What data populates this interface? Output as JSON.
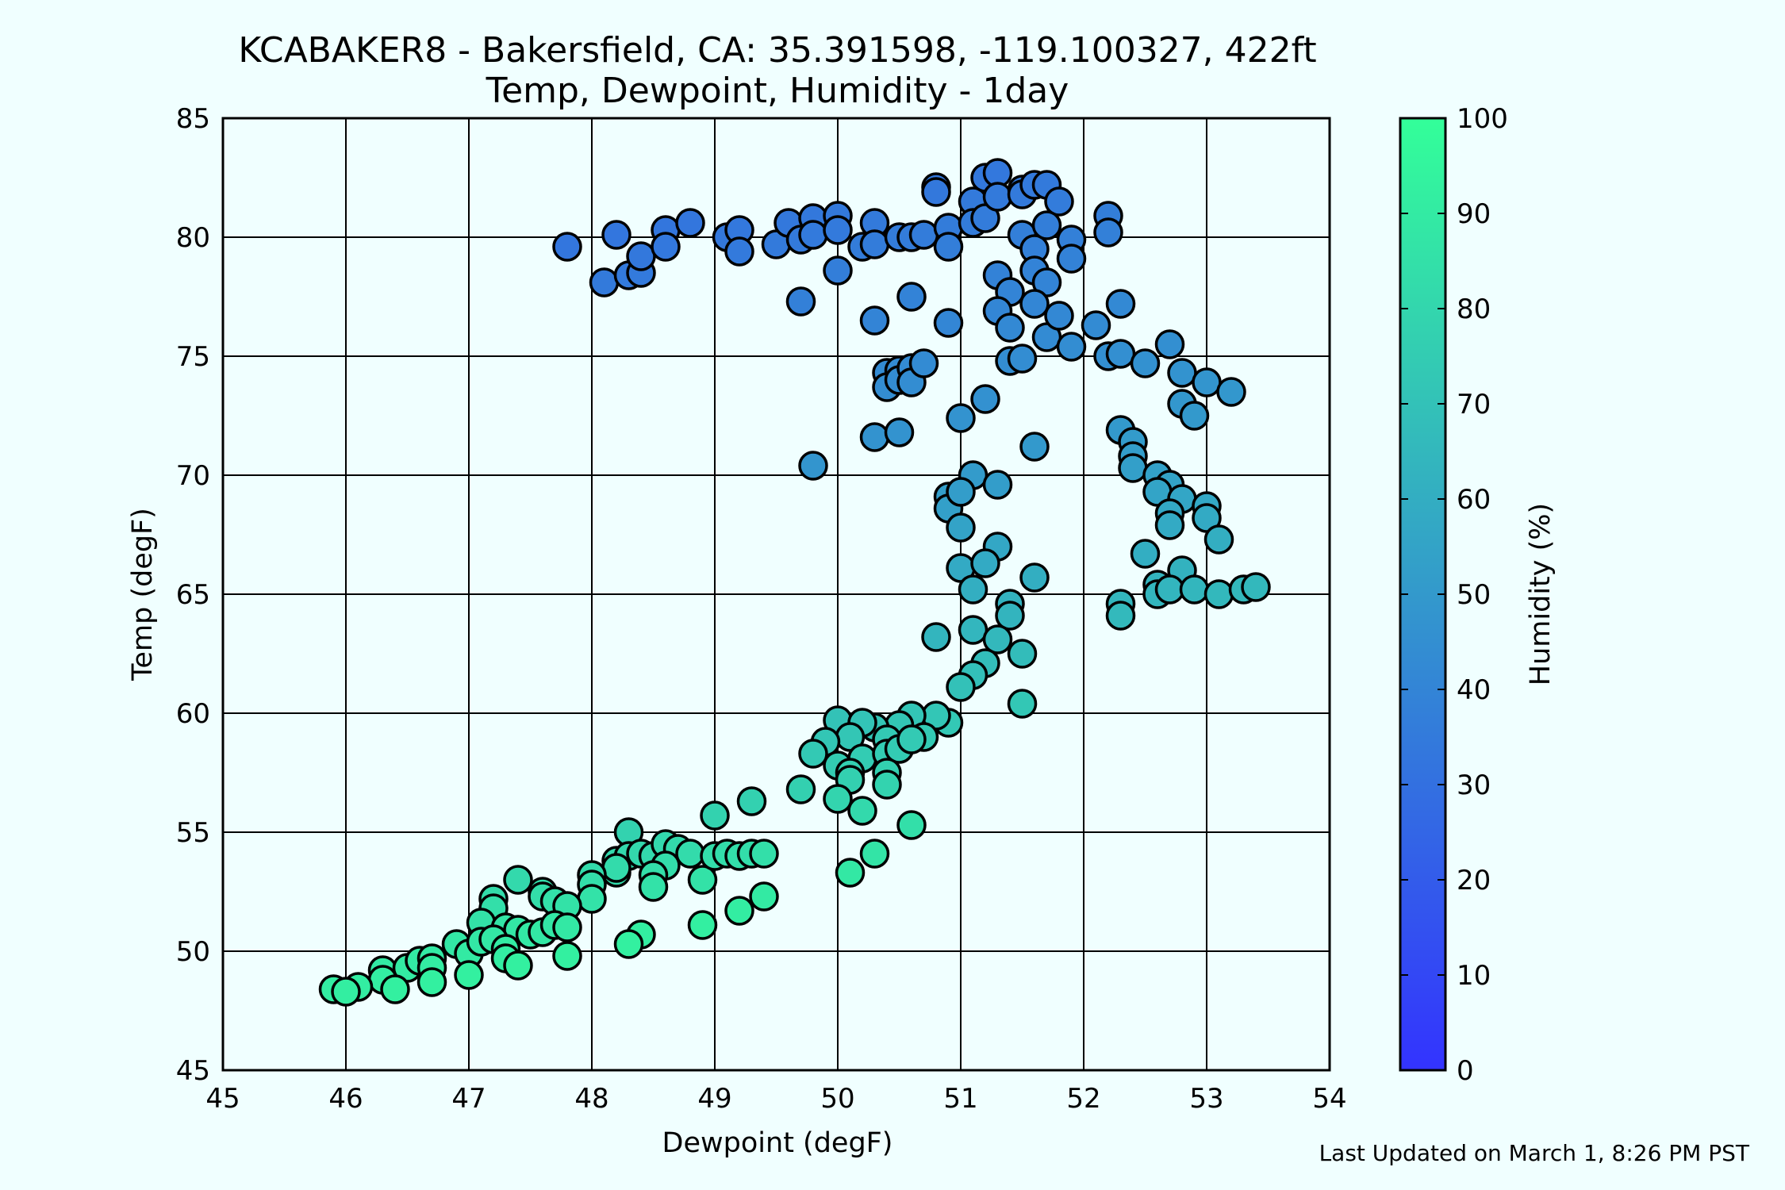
{
  "chart_data": {
    "type": "scatter",
    "title": "KCABAKER8 - Bakersfield, CA: 35.391598, -119.100327, 422ft",
    "subtitle": "Temp, Dewpoint, Humidity - 1day",
    "xlabel": "Dewpoint (degF)",
    "ylabel": "Temp (degF)",
    "xlim": [
      45,
      54
    ],
    "ylim": [
      45,
      85
    ],
    "xticks": [
      45,
      46,
      47,
      48,
      49,
      50,
      51,
      52,
      53,
      54
    ],
    "yticks": [
      45,
      50,
      55,
      60,
      65,
      70,
      75,
      80,
      85
    ],
    "grid": true,
    "colorbar": {
      "label": "Humidity (%)",
      "range": [
        0,
        100
      ],
      "ticks": [
        0,
        10,
        20,
        30,
        40,
        50,
        60,
        70,
        80,
        90,
        100
      ],
      "colormap": [
        "#3333ff",
        "#33ff99"
      ]
    },
    "footer": "Last Updated on March 1, 8:26 PM PST",
    "points": [
      [
        47.8,
        79.6
      ],
      [
        48.1,
        78.1
      ],
      [
        48.2,
        80.1
      ],
      [
        48.3,
        78.4
      ],
      [
        48.4,
        78.5
      ],
      [
        48.4,
        79.2
      ],
      [
        48.6,
        80.3
      ],
      [
        48.6,
        79.6
      ],
      [
        48.8,
        80.6
      ],
      [
        49.1,
        80.0
      ],
      [
        49.2,
        80.3
      ],
      [
        49.2,
        79.4
      ],
      [
        49.5,
        79.7
      ],
      [
        49.6,
        80.6
      ],
      [
        49.7,
        79.9
      ],
      [
        49.8,
        80.8
      ],
      [
        49.8,
        80.1
      ],
      [
        50.0,
        80.9
      ],
      [
        50.0,
        80.3
      ],
      [
        49.7,
        77.3
      ],
      [
        50.0,
        78.6
      ],
      [
        50.2,
        79.6
      ],
      [
        50.3,
        80.6
      ],
      [
        50.3,
        79.7
      ],
      [
        50.5,
        80.0
      ],
      [
        50.6,
        80.0
      ],
      [
        50.7,
        80.1
      ],
      [
        50.9,
        80.4
      ],
      [
        50.9,
        79.6
      ],
      [
        50.8,
        82.1
      ],
      [
        50.8,
        81.9
      ],
      [
        51.1,
        81.5
      ],
      [
        51.1,
        80.6
      ],
      [
        51.2,
        82.5
      ],
      [
        51.2,
        80.8
      ],
      [
        51.3,
        82.7
      ],
      [
        51.3,
        81.7
      ],
      [
        51.5,
        82.0
      ],
      [
        51.5,
        81.8
      ],
      [
        51.6,
        82.2
      ],
      [
        51.7,
        82.2
      ],
      [
        51.8,
        81.5
      ],
      [
        51.5,
        80.1
      ],
      [
        51.6,
        79.5
      ],
      [
        51.7,
        80.5
      ],
      [
        51.9,
        79.9
      ],
      [
        51.9,
        79.1
      ],
      [
        52.2,
        80.9
      ],
      [
        52.2,
        80.2
      ],
      [
        51.3,
        78.4
      ],
      [
        51.4,
        77.7
      ],
      [
        51.6,
        78.6
      ],
      [
        51.7,
        78.1
      ],
      [
        50.3,
        76.5
      ],
      [
        50.6,
        77.5
      ],
      [
        50.9,
        76.4
      ],
      [
        51.3,
        76.9
      ],
      [
        51.4,
        76.2
      ],
      [
        51.6,
        77.2
      ],
      [
        51.7,
        75.8
      ],
      [
        51.8,
        76.7
      ],
      [
        51.9,
        75.4
      ],
      [
        52.1,
        76.3
      ],
      [
        52.3,
        77.2
      ],
      [
        52.2,
        75.0
      ],
      [
        52.3,
        75.1
      ],
      [
        52.5,
        74.7
      ],
      [
        52.7,
        75.5
      ],
      [
        52.8,
        74.3
      ],
      [
        53.0,
        73.9
      ],
      [
        53.2,
        73.5
      ],
      [
        52.8,
        73.0
      ],
      [
        52.9,
        72.5
      ],
      [
        50.4,
        74.3
      ],
      [
        50.4,
        73.7
      ],
      [
        50.5,
        74.4
      ],
      [
        50.5,
        74.0
      ],
      [
        50.6,
        74.5
      ],
      [
        50.6,
        73.9
      ],
      [
        50.7,
        74.7
      ],
      [
        51.4,
        74.8
      ],
      [
        51.5,
        74.9
      ],
      [
        51.2,
        73.2
      ],
      [
        51.0,
        72.4
      ],
      [
        50.3,
        71.6
      ],
      [
        50.5,
        71.8
      ],
      [
        49.8,
        70.4
      ],
      [
        51.6,
        71.2
      ],
      [
        52.3,
        71.9
      ],
      [
        52.4,
        71.4
      ],
      [
        52.4,
        70.8
      ],
      [
        52.4,
        70.3
      ],
      [
        51.1,
        70.0
      ],
      [
        51.3,
        69.6
      ],
      [
        50.9,
        69.1
      ],
      [
        50.9,
        68.6
      ],
      [
        51.0,
        69.3
      ],
      [
        51.0,
        67.8
      ],
      [
        52.6,
        70.0
      ],
      [
        52.7,
        69.6
      ],
      [
        52.6,
        69.3
      ],
      [
        52.8,
        69.0
      ],
      [
        52.7,
        68.4
      ],
      [
        52.7,
        67.9
      ],
      [
        53.0,
        68.7
      ],
      [
        53.0,
        68.2
      ],
      [
        53.1,
        67.3
      ],
      [
        51.3,
        67.0
      ],
      [
        51.0,
        66.1
      ],
      [
        51.2,
        66.3
      ],
      [
        51.1,
        65.2
      ],
      [
        51.6,
        65.7
      ],
      [
        52.5,
        66.7
      ],
      [
        52.8,
        66.0
      ],
      [
        52.6,
        65.4
      ],
      [
        52.6,
        65.0
      ],
      [
        52.7,
        65.2
      ],
      [
        52.9,
        65.2
      ],
      [
        53.1,
        65.0
      ],
      [
        53.3,
        65.2
      ],
      [
        53.4,
        65.3
      ],
      [
        52.3,
        64.6
      ],
      [
        52.3,
        64.1
      ],
      [
        51.4,
        64.6
      ],
      [
        51.4,
        64.1
      ],
      [
        51.1,
        63.5
      ],
      [
        51.3,
        63.1
      ],
      [
        50.8,
        63.2
      ],
      [
        51.2,
        62.1
      ],
      [
        51.5,
        62.5
      ],
      [
        51.1,
        61.6
      ],
      [
        51.0,
        61.1
      ],
      [
        51.5,
        60.4
      ],
      [
        50.9,
        59.6
      ],
      [
        50.8,
        59.9
      ],
      [
        50.6,
        59.9
      ],
      [
        50.7,
        59.0
      ],
      [
        50.5,
        59.5
      ],
      [
        50.3,
        59.4
      ],
      [
        50.0,
        59.7
      ],
      [
        50.2,
        59.6
      ],
      [
        50.1,
        59.0
      ],
      [
        49.9,
        58.8
      ],
      [
        50.4,
        58.9
      ],
      [
        49.8,
        58.3
      ],
      [
        50.0,
        57.8
      ],
      [
        50.2,
        58.1
      ],
      [
        50.4,
        58.3
      ],
      [
        50.5,
        58.5
      ],
      [
        50.6,
        58.9
      ],
      [
        50.1,
        57.5
      ],
      [
        50.1,
        57.2
      ],
      [
        50.4,
        57.5
      ],
      [
        50.4,
        57.0
      ],
      [
        49.7,
        56.8
      ],
      [
        50.0,
        56.4
      ],
      [
        50.2,
        55.9
      ],
      [
        50.6,
        55.3
      ],
      [
        49.0,
        55.7
      ],
      [
        49.3,
        56.3
      ],
      [
        48.3,
        55.0
      ],
      [
        48.2,
        53.8
      ],
      [
        48.3,
        54.0
      ],
      [
        48.4,
        54.1
      ],
      [
        48.5,
        54.0
      ],
      [
        48.6,
        54.5
      ],
      [
        48.7,
        54.3
      ],
      [
        48.8,
        54.1
      ],
      [
        48.6,
        53.6
      ],
      [
        48.5,
        53.2
      ],
      [
        48.5,
        52.7
      ],
      [
        48.2,
        53.3
      ],
      [
        48.2,
        53.5
      ],
      [
        48.0,
        53.2
      ],
      [
        48.0,
        52.8
      ],
      [
        48.0,
        52.2
      ],
      [
        48.9,
        53.0
      ],
      [
        49.0,
        54.0
      ],
      [
        49.1,
        54.1
      ],
      [
        49.2,
        54.0
      ],
      [
        49.3,
        54.1
      ],
      [
        49.4,
        54.1
      ],
      [
        50.1,
        53.3
      ],
      [
        50.3,
        54.1
      ],
      [
        49.4,
        52.3
      ],
      [
        49.2,
        51.7
      ],
      [
        48.9,
        51.1
      ],
      [
        48.4,
        50.7
      ],
      [
        48.3,
        50.3
      ],
      [
        47.4,
        53.0
      ],
      [
        47.6,
        52.5
      ],
      [
        47.6,
        52.3
      ],
      [
        47.7,
        52.1
      ],
      [
        47.8,
        51.9
      ],
      [
        47.2,
        52.2
      ],
      [
        47.2,
        51.8
      ],
      [
        47.1,
        51.2
      ],
      [
        47.3,
        51.0
      ],
      [
        47.4,
        50.9
      ],
      [
        47.5,
        50.7
      ],
      [
        47.6,
        50.8
      ],
      [
        47.7,
        51.1
      ],
      [
        47.8,
        51.0
      ],
      [
        47.8,
        49.8
      ],
      [
        46.9,
        50.3
      ],
      [
        47.0,
        49.9
      ],
      [
        47.1,
        50.4
      ],
      [
        47.2,
        50.5
      ],
      [
        47.3,
        50.1
      ],
      [
        47.3,
        49.7
      ],
      [
        47.4,
        49.4
      ],
      [
        47.0,
        49.0
      ],
      [
        46.3,
        49.2
      ],
      [
        46.3,
        48.8
      ],
      [
        46.5,
        49.3
      ],
      [
        46.6,
        49.6
      ],
      [
        46.7,
        49.7
      ],
      [
        46.7,
        49.3
      ],
      [
        46.7,
        48.7
      ],
      [
        46.4,
        48.4
      ],
      [
        46.1,
        48.5
      ],
      [
        45.9,
        48.4
      ],
      [
        46.0,
        48.3
      ]
    ]
  }
}
